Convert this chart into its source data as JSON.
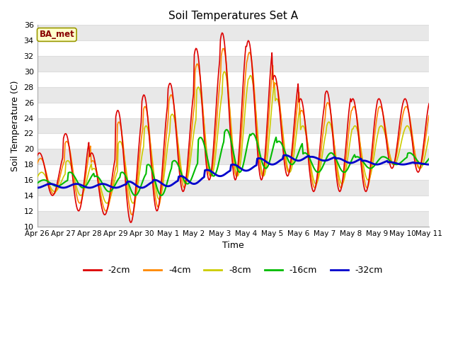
{
  "title": "Soil Temperatures Set A",
  "xlabel": "Time",
  "ylabel": "Soil Temperature (C)",
  "ylim": [
    10,
    36
  ],
  "yticks": [
    10,
    12,
    14,
    16,
    18,
    20,
    22,
    24,
    26,
    28,
    30,
    32,
    34,
    36
  ],
  "background_color": "#ffffff",
  "plot_bg_color": "#ffffff",
  "grid_color": "#dddddd",
  "label_box_text": "BA_met",
  "label_box_facecolor": "#ffffcc",
  "label_box_edgecolor": "#999900",
  "label_box_textcolor": "#880000",
  "colors": {
    "-2cm": "#dd0000",
    "-4cm": "#ff8800",
    "-8cm": "#cccc00",
    "-16cm": "#00bb00",
    "-32cm": "#0000cc"
  },
  "linewidths": {
    "-2cm": 1.2,
    "-4cm": 1.2,
    "-8cm": 1.2,
    "-16cm": 1.5,
    "-32cm": 2.0
  },
  "xtick_labels": [
    "Apr 26",
    "Apr 27",
    "Apr 28",
    "Apr 29",
    "Apr 30",
    "May 1",
    "May 2",
    "May 3",
    "May 4",
    "May 5",
    "May 6",
    "May 7",
    "May 8",
    "May 9",
    "May 10",
    "May 11"
  ],
  "n_points": 480,
  "duration_days": 15,
  "days_2cm_min": [
    14.0,
    12.0,
    11.5,
    10.5,
    12.0,
    14.5,
    16.0,
    16.0,
    16.0,
    16.5,
    14.5,
    14.5,
    14.5,
    17.5,
    17.0
  ],
  "days_2cm_max": [
    19.5,
    22.0,
    19.5,
    25.0,
    27.0,
    28.5,
    33.0,
    35.0,
    34.0,
    29.5,
    26.5,
    27.5,
    26.5,
    26.5,
    26.5
  ],
  "days_4cm_min": [
    14.2,
    13.0,
    12.0,
    11.5,
    12.5,
    15.0,
    16.5,
    16.5,
    16.5,
    17.0,
    15.0,
    15.0,
    15.0,
    18.0,
    17.5
  ],
  "days_4cm_max": [
    18.8,
    21.0,
    18.5,
    23.5,
    25.5,
    27.0,
    31.0,
    33.0,
    32.5,
    28.5,
    25.0,
    26.0,
    25.5,
    25.5,
    25.5
  ],
  "days_8cm_min": [
    14.5,
    14.0,
    13.0,
    13.0,
    13.5,
    15.5,
    16.5,
    16.5,
    16.5,
    17.0,
    15.5,
    15.5,
    16.0,
    18.0,
    17.5
  ],
  "days_8cm_max": [
    17.0,
    18.5,
    17.5,
    21.0,
    23.0,
    24.5,
    28.0,
    30.0,
    29.5,
    26.5,
    23.0,
    23.5,
    23.0,
    23.0,
    23.0
  ],
  "days_16cm_min": [
    15.2,
    15.0,
    14.5,
    14.0,
    14.0,
    15.5,
    16.5,
    17.0,
    17.5,
    18.0,
    17.0,
    17.0,
    17.5,
    18.0,
    18.0
  ],
  "days_16cm_max": [
    16.0,
    17.0,
    16.5,
    17.0,
    18.0,
    18.5,
    21.5,
    22.5,
    22.0,
    21.0,
    19.5,
    19.5,
    19.0,
    19.0,
    19.5
  ],
  "days_32cm_min": [
    15.0,
    15.0,
    15.0,
    15.0,
    15.2,
    15.5,
    16.5,
    17.2,
    18.0,
    18.5,
    18.5,
    18.2,
    18.0,
    18.0,
    18.0
  ],
  "days_32cm_max": [
    15.5,
    15.5,
    15.5,
    15.8,
    16.0,
    16.5,
    17.3,
    18.0,
    18.8,
    19.2,
    19.0,
    18.8,
    18.5,
    18.3,
    18.2
  ],
  "legend_entries": [
    "-2cm",
    "-4cm",
    "-8cm",
    "-16cm",
    "-32cm"
  ]
}
